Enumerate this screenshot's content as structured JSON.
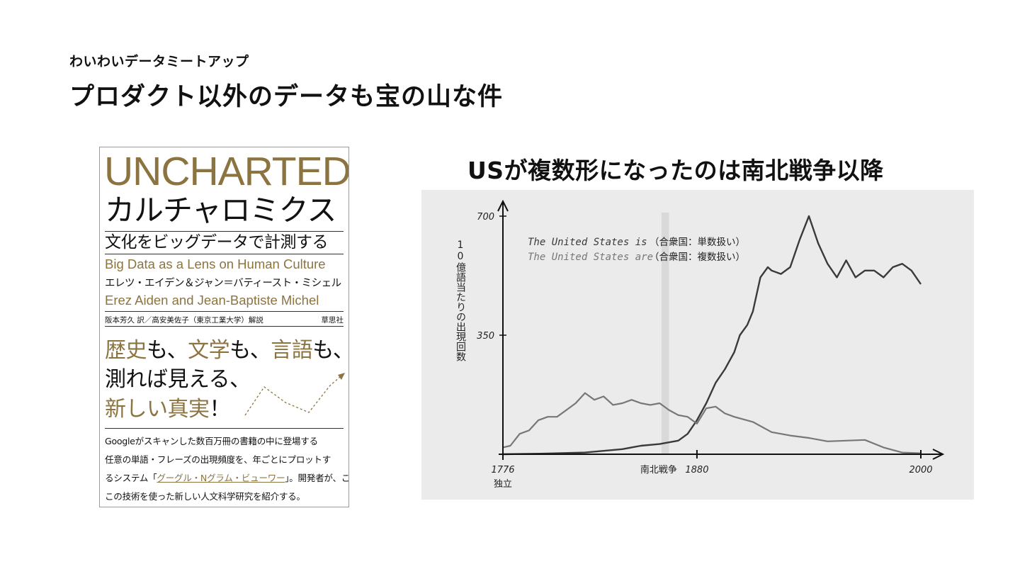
{
  "header": {
    "eyebrow": "わいわいデータミートアップ",
    "title": "プロダクト以外のデータも宝の山な件"
  },
  "book": {
    "en_title": "UNCHARTED",
    "ja_title": "カルチャロミクス",
    "subtitle": "文化をビッグデータで計測する",
    "en_subtitle": "Big Data as a Lens on Human Culture",
    "ja_authors": "エレツ・エイデン＆ジャン＝バティースト・ミシェル",
    "en_authors": "Erez Aiden and Jean-Baptiste Michel",
    "translator": "阪本芳久 訳／高安美佐子（東京工業大学）解説",
    "publisher": "草思社",
    "catch": {
      "l1a": "歴史",
      "l1b": "も、",
      "l1c": "文学",
      "l1d": "も、",
      "l1e": "言語",
      "l1f": "も、",
      "l2": "測れば見える、",
      "l3a": "新しい真実",
      "l3b": "！"
    },
    "description": {
      "l1": "Googleがスキャンした数百万冊の書籍の中に登場する",
      "l2": "任意の単語・フレーズの出現頻度を、年ごとにプロットす",
      "l3a": "るシステム「",
      "l3b": "グーグル・Nグラム・ビューワー",
      "l3c": "」。開発者が、こ",
      "l4": "この技術を使った新しい人文科学研究を紹介する。"
    }
  },
  "figure": {
    "title": "USが複数形になったのは南北戦争以降"
  },
  "chart_data": {
    "type": "line",
    "ylabel": "10億語当たりの出現回数",
    "xlim": [
      1776,
      2000
    ],
    "ylim": [
      0,
      700
    ],
    "x_ticks": [
      {
        "value": 1776,
        "label": "1776",
        "sublabel": "独立"
      },
      {
        "value": 1880,
        "label": "1880",
        "prefix": "南北戦争"
      },
      {
        "value": 2000,
        "label": "2000"
      }
    ],
    "y_ticks": [
      {
        "value": 350,
        "label": "350"
      },
      {
        "value": 700,
        "label": "700"
      }
    ],
    "highlight_band": {
      "from": 1861,
      "to": 1865
    },
    "series": [
      {
        "name": "The United States is",
        "legend_note": "（合衆国：単数扱い）",
        "color": "#3a3a3a",
        "x": [
          1776,
          1800,
          1820,
          1830,
          1840,
          1850,
          1860,
          1865,
          1870,
          1875,
          1880,
          1885,
          1890,
          1895,
          1900,
          1903,
          1907,
          1910,
          1914,
          1918,
          1920,
          1925,
          1930,
          1935,
          1940,
          1945,
          1950,
          1955,
          1960,
          1965,
          1970,
          1975,
          1980,
          1985,
          1990,
          1995,
          2000
        ],
        "y": [
          0,
          2,
          5,
          10,
          15,
          25,
          30,
          35,
          40,
          60,
          100,
          150,
          210,
          250,
          300,
          350,
          380,
          420,
          520,
          550,
          540,
          530,
          550,
          630,
          700,
          620,
          560,
          520,
          570,
          520,
          540,
          540,
          520,
          550,
          560,
          540,
          500
        ]
      },
      {
        "name": "The United States are",
        "legend_note": "（合衆国：複数扱い）",
        "color": "#777777",
        "x": [
          1776,
          1780,
          1785,
          1790,
          1795,
          1800,
          1805,
          1810,
          1815,
          1820,
          1825,
          1830,
          1835,
          1840,
          1845,
          1850,
          1855,
          1860,
          1865,
          1870,
          1875,
          1880,
          1885,
          1890,
          1895,
          1900,
          1910,
          1920,
          1930,
          1940,
          1950,
          1960,
          1970,
          1980,
          1990,
          2000
        ],
        "y": [
          20,
          25,
          60,
          70,
          100,
          110,
          110,
          130,
          150,
          180,
          160,
          170,
          145,
          150,
          160,
          150,
          145,
          150,
          130,
          115,
          110,
          90,
          135,
          140,
          120,
          110,
          95,
          65,
          55,
          48,
          38,
          40,
          42,
          20,
          5,
          3
        ]
      }
    ]
  }
}
